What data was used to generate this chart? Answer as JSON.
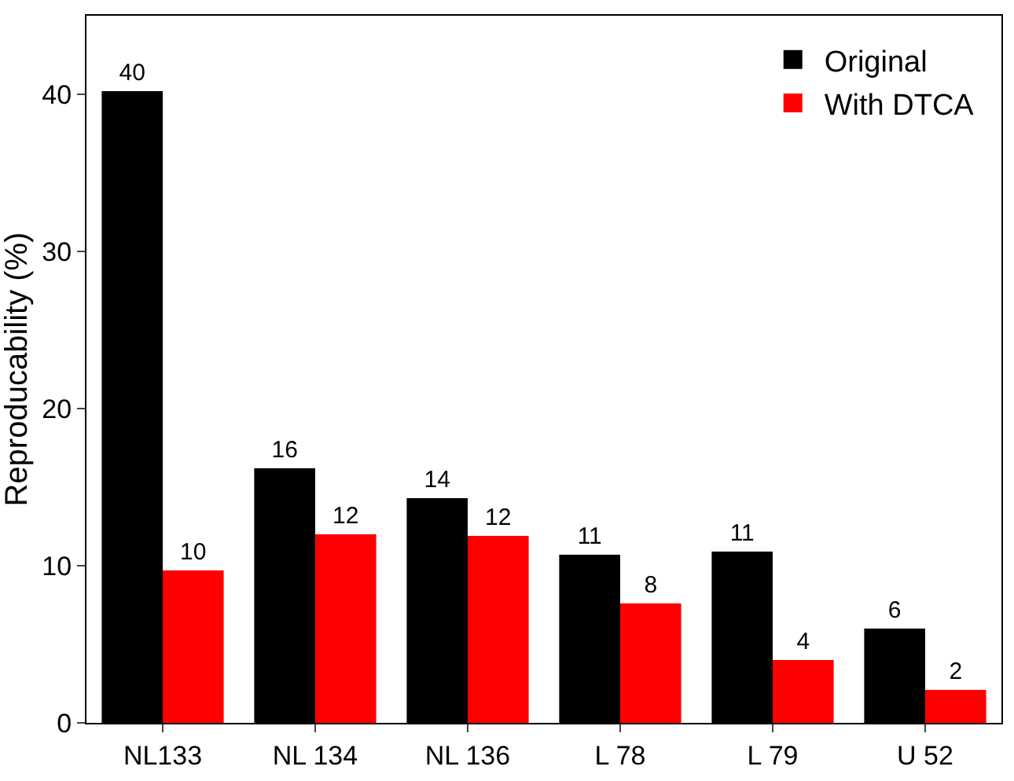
{
  "chart_data": {
    "type": "bar",
    "ylabel": "Reproducability (%)",
    "categories": [
      "NL133",
      "NL 134",
      "NL 136",
      "L 78",
      "L 79",
      "U 52"
    ],
    "series": [
      {
        "name": "Original",
        "color": "#000000",
        "values": [
          40.2,
          16.2,
          14.3,
          10.7,
          10.9,
          6.0
        ],
        "value_labels": [
          "40",
          "16",
          "14",
          "11",
          "11",
          "6"
        ]
      },
      {
        "name": "With DTCA",
        "color": "#ff0000",
        "values": [
          9.7,
          12.0,
          11.9,
          7.6,
          4.0,
          2.1
        ],
        "value_labels": [
          "10",
          "12",
          "12",
          "8",
          "4",
          "2"
        ]
      }
    ],
    "ylim": [
      0,
      45
    ],
    "yticks": [
      0,
      10,
      20,
      30,
      40
    ],
    "legend": "top right"
  }
}
